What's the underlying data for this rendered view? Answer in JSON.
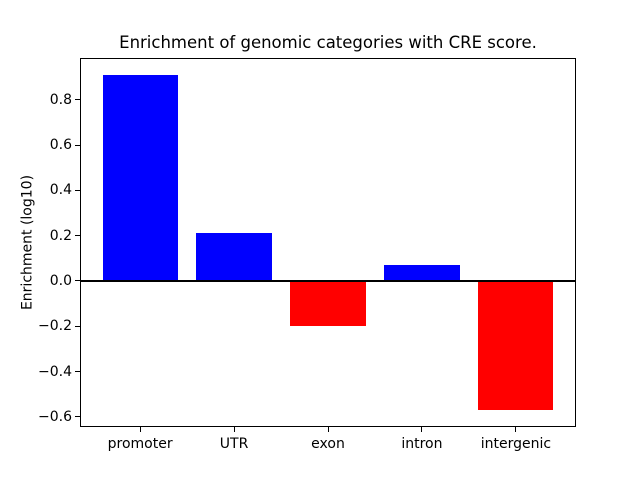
{
  "chart_data": {
    "type": "bar",
    "title": "Enrichment of genomic categories with CRE score.",
    "xlabel": "",
    "ylabel": "Enrichment (log10)",
    "categories": [
      "promoter",
      "UTR",
      "exon",
      "intron",
      "intergenic"
    ],
    "values": [
      0.91,
      0.21,
      -0.2,
      0.07,
      -0.57
    ],
    "positive_color": "#0000ff",
    "negative_color": "#ff0000",
    "bar_width": 0.8,
    "xlim": [
      -0.64,
      4.64
    ],
    "ylim": [
      -0.645,
      0.985
    ],
    "yticks": [
      -0.6,
      -0.4,
      -0.2,
      0,
      0.2,
      0.4,
      0.6,
      0.8
    ],
    "ytick_labels": [
      "−0.6",
      "−0.4",
      "−0.2",
      "0.0",
      "0.2",
      "0.4",
      "0.6",
      "0.8"
    ],
    "grid": false,
    "legend": "none",
    "zero_line": true,
    "axis_color": "#000000",
    "background": "#ffffff"
  }
}
